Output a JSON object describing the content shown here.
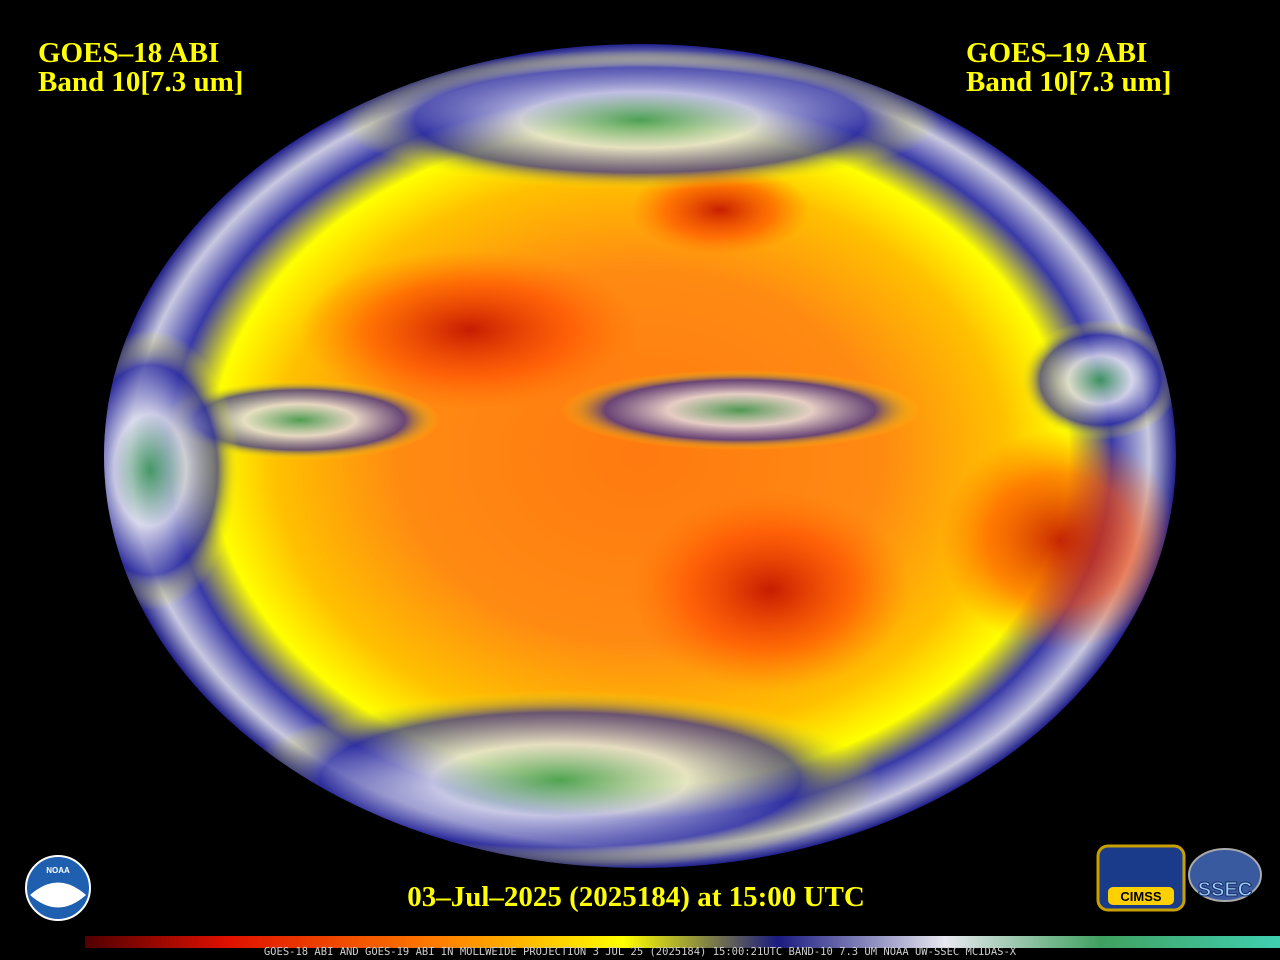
{
  "left_label": {
    "satellite": "GOES–18 ABI",
    "band": "Band 10[7.3 um]"
  },
  "right_label": {
    "satellite": "GOES–19 ABI",
    "band": "Band 10[7.3 um]"
  },
  "timestamp": "03–Jul–2025 (2025184) at 15:00 UTC",
  "footer": "GOES-18 ABI AND GOES-19 ABI IN MOLLWEIDE PROJECTION 3 JUL 25 (2025184) 15:00:21UTC BAND-10 7.3 UM NOAA UW-SSEC MCIDAS-X",
  "logos": {
    "noaa": "NOAA",
    "cimss": "CIMSS",
    "ssec": "SSEC"
  }
}
